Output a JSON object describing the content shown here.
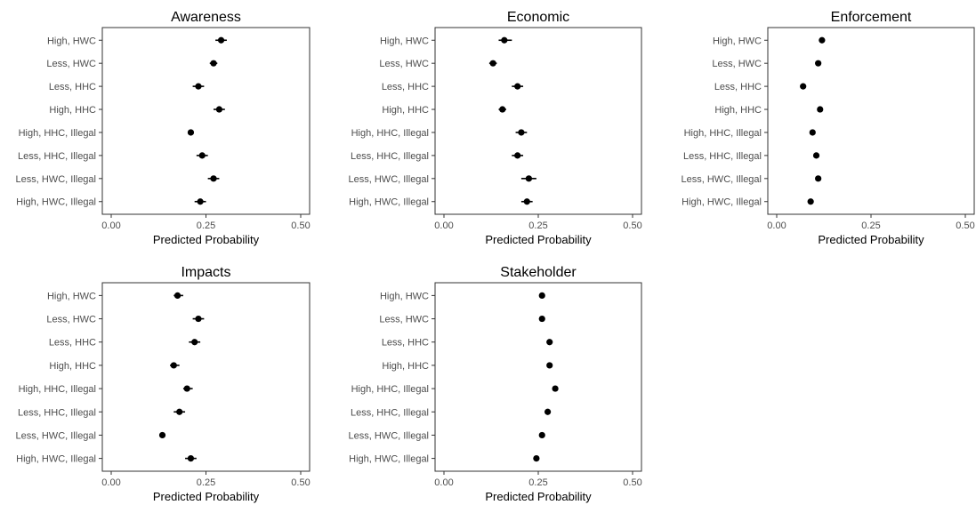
{
  "chart_data": [
    {
      "type": "scatter",
      "title": "Awareness",
      "xlabel": "Predicted Probability",
      "ylabel": "",
      "xlim": [
        0,
        0.5
      ],
      "xticks": [
        "0.00",
        "0.25",
        "0.50"
      ],
      "grid": false,
      "categories": [
        "High, HWC",
        "Less, HWC",
        "Less, HHC",
        "High, HHC",
        "High, HHC, Illegal",
        "Less, HHC, Illegal",
        "Less, HWC, Illegal",
        "High, HWC, Illegal"
      ],
      "values": [
        0.29,
        0.27,
        0.23,
        0.285,
        0.21,
        0.24,
        0.27,
        0.235
      ],
      "ci": [
        [
          0.275,
          0.305
        ],
        [
          0.26,
          0.28
        ],
        [
          0.215,
          0.245
        ],
        [
          0.27,
          0.3
        ],
        [
          0.203,
          0.217
        ],
        [
          0.225,
          0.255
        ],
        [
          0.255,
          0.285
        ],
        [
          0.22,
          0.25
        ]
      ]
    },
    {
      "type": "scatter",
      "title": "Economic",
      "xlabel": "Predicted Probability",
      "ylabel": "",
      "xlim": [
        0,
        0.5
      ],
      "xticks": [
        "0.00",
        "0.25",
        "0.50"
      ],
      "grid": false,
      "categories": [
        "High, HWC",
        "Less, HWC",
        "Less, HHC",
        "High, HHC",
        "High, HHC, Illegal",
        "Less, HHC, Illegal",
        "Less, HWC, Illegal",
        "High, HWC, Illegal"
      ],
      "values": [
        0.16,
        0.13,
        0.195,
        0.155,
        0.205,
        0.195,
        0.225,
        0.22
      ],
      "ci": [
        [
          0.145,
          0.18
        ],
        [
          0.12,
          0.14
        ],
        [
          0.18,
          0.21
        ],
        [
          0.145,
          0.165
        ],
        [
          0.19,
          0.22
        ],
        [
          0.18,
          0.21
        ],
        [
          0.205,
          0.245
        ],
        [
          0.205,
          0.235
        ]
      ]
    },
    {
      "type": "scatter",
      "title": "Enforcement",
      "xlabel": "Predicted Probability",
      "ylabel": "",
      "xlim": [
        0,
        0.5
      ],
      "xticks": [
        "0.00",
        "0.25",
        "0.50"
      ],
      "grid": false,
      "categories": [
        "High, HWC",
        "Less, HWC",
        "Less, HHC",
        "High, HHC",
        "High, HHC, Illegal",
        "Less, HHC, Illegal",
        "Less, HWC, Illegal",
        "High, HWC, Illegal"
      ],
      "values": [
        0.12,
        0.11,
        0.07,
        0.115,
        0.095,
        0.105,
        0.11,
        0.09
      ],
      "ci": [
        [
          0.114,
          0.126
        ],
        [
          0.105,
          0.115
        ],
        [
          0.065,
          0.075
        ],
        [
          0.11,
          0.12
        ],
        [
          0.09,
          0.1
        ],
        [
          0.1,
          0.11
        ],
        [
          0.104,
          0.118
        ],
        [
          0.085,
          0.095
        ]
      ]
    },
    {
      "type": "scatter",
      "title": "Impacts",
      "xlabel": "Predicted Probability",
      "ylabel": "",
      "xlim": [
        0,
        0.5
      ],
      "xticks": [
        "0.00",
        "0.25",
        "0.50"
      ],
      "grid": false,
      "categories": [
        "High, HWC",
        "Less, HWC",
        "Less, HHC",
        "High, HHC",
        "High, HHC, Illegal",
        "Less, HHC, Illegal",
        "Less, HWC, Illegal",
        "High, HWC, Illegal"
      ],
      "values": [
        0.175,
        0.23,
        0.22,
        0.165,
        0.2,
        0.18,
        0.135,
        0.21
      ],
      "ci": [
        [
          0.165,
          0.19
        ],
        [
          0.215,
          0.245
        ],
        [
          0.205,
          0.235
        ],
        [
          0.155,
          0.18
        ],
        [
          0.19,
          0.215
        ],
        [
          0.165,
          0.195
        ],
        [
          0.128,
          0.142
        ],
        [
          0.195,
          0.225
        ]
      ]
    },
    {
      "type": "scatter",
      "title": "Stakeholder",
      "xlabel": "Predicted Probability",
      "ylabel": "",
      "xlim": [
        0,
        0.5
      ],
      "xticks": [
        "0.00",
        "0.25",
        "0.50"
      ],
      "grid": false,
      "categories": [
        "High, HWC",
        "Less, HWC",
        "Less, HHC",
        "High, HHC",
        "High, HHC, Illegal",
        "Less, HHC, Illegal",
        "Less, HWC, Illegal",
        "High, HWC, Illegal"
      ],
      "values": [
        0.26,
        0.26,
        0.28,
        0.28,
        0.295,
        0.275,
        0.26,
        0.245
      ],
      "ci": [
        [
          0.255,
          0.265
        ],
        [
          0.255,
          0.265
        ],
        [
          0.275,
          0.285
        ],
        [
          0.275,
          0.285
        ],
        [
          0.29,
          0.3
        ],
        [
          0.27,
          0.28
        ],
        [
          0.255,
          0.265
        ],
        [
          0.24,
          0.25
        ]
      ]
    }
  ]
}
